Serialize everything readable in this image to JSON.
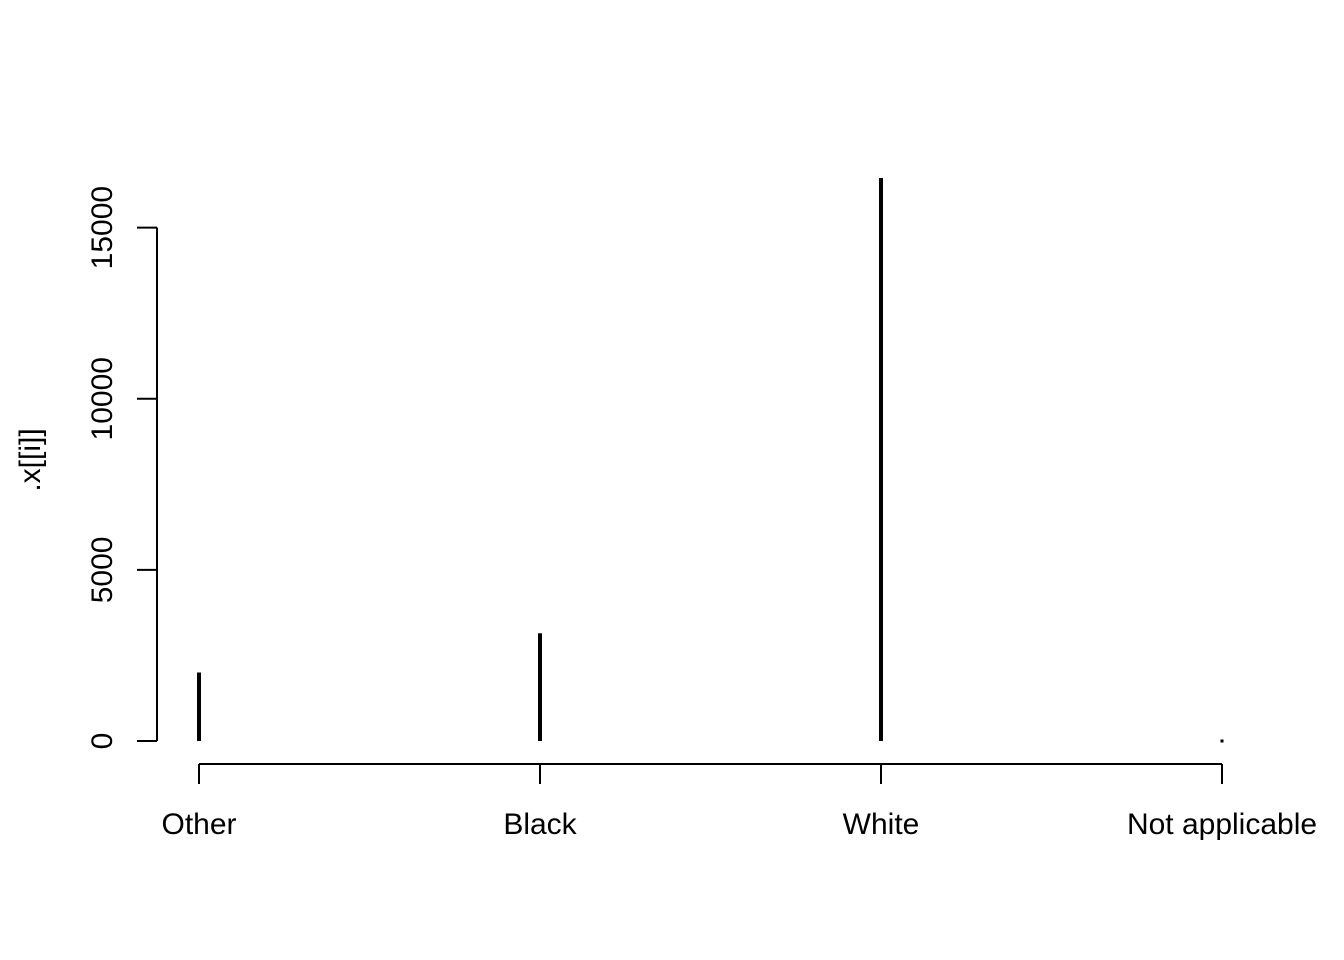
{
  "chart_data": {
    "type": "bar",
    "style": "spikes",
    "title": "",
    "xlabel": "",
    "ylabel": ".x[[i]]",
    "categories": [
      "Other",
      "Black",
      "White",
      "Not applicable"
    ],
    "values": [
      2000,
      3150,
      16450,
      0
    ],
    "ylim": [
      0,
      16450
    ],
    "yticks": [
      0,
      5000,
      10000,
      15000
    ],
    "ytick_labels": [
      "0",
      "5000",
      "10000",
      "15000"
    ],
    "grid": false,
    "legend": "none",
    "colors": {
      "spike": "#000000",
      "axis": "#000000",
      "background": "#ffffff"
    }
  }
}
